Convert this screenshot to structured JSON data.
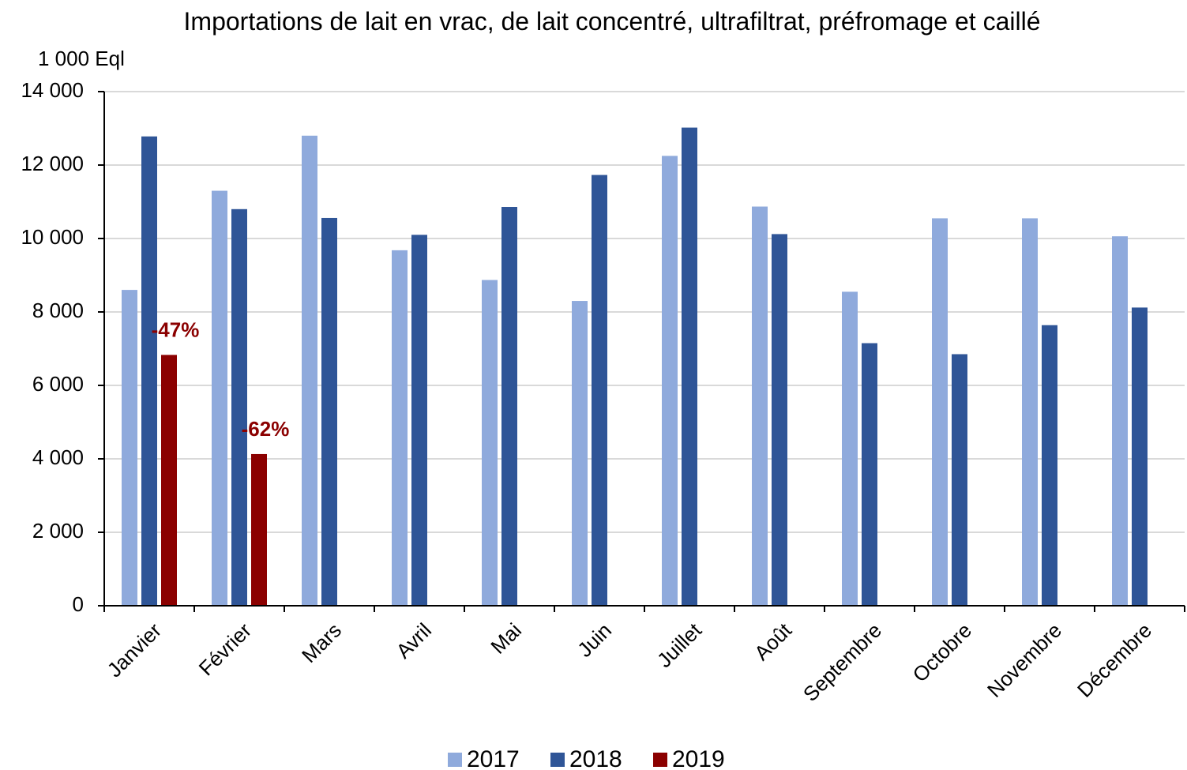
{
  "chart_data": {
    "type": "bar",
    "title": "Importations de lait en vrac, de lait concentré, ultrafiltrat, préfromage et caillé",
    "y_label": "1 000 Eql",
    "categories": [
      "Janvier",
      "Février",
      "Mars",
      "Avril",
      "Mai",
      "Juin",
      "Juillet",
      "Août",
      "Septembre",
      "Octobre",
      "Novembre",
      "Décembre"
    ],
    "series": [
      {
        "name": "2017",
        "color": "#8faadc",
        "values": [
          8600,
          11300,
          12800,
          9680,
          8870,
          8300,
          12250,
          10870,
          8550,
          10550,
          10550,
          10060
        ]
      },
      {
        "name": "2018",
        "color": "#2f5597",
        "values": [
          12780,
          10800,
          10560,
          10100,
          10860,
          11730,
          13020,
          10120,
          7150,
          6850,
          7640,
          8120
        ]
      },
      {
        "name": "2019",
        "color": "#8b0000",
        "values": [
          6830,
          4130,
          null,
          null,
          null,
          null,
          null,
          null,
          null,
          null,
          null,
          null
        ],
        "annotations": [
          "-47%",
          "-62%",
          null,
          null,
          null,
          null,
          null,
          null,
          null,
          null,
          null,
          null
        ]
      }
    ],
    "ylim": [
      0,
      14000
    ],
    "yticks": [
      0,
      {
        "value": 2000,
        "label": "2 000"
      },
      {
        "value": 4000,
        "label": "4 000"
      },
      {
        "value": 6000,
        "label": "6 000"
      },
      {
        "value": 8000,
        "label": "8 000"
      },
      {
        "value": 10000,
        "label": "10 000"
      },
      {
        "value": 12000,
        "label": "12 000"
      },
      {
        "value": 14000,
        "label": "14 000"
      }
    ],
    "grid": true,
    "legend": "bottom"
  }
}
